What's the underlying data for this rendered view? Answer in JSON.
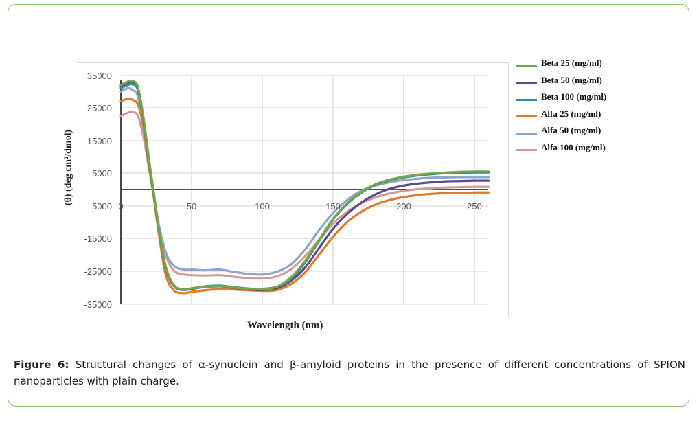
{
  "figure": {
    "caption_label": "Figure 6:",
    "caption_text": " Structural changes of α-synuclein and β-amyloid proteins in the presence of different concentrations of SPION nanoparticles with plain charge."
  },
  "chart_data": {
    "type": "line",
    "title": "",
    "xlabel": "Wavelength (nm)",
    "ylabel": "(θ) (deg cm²/dmol)",
    "xlim": [
      0,
      260
    ],
    "ylim": [
      -35000,
      35000
    ],
    "x_ticks": [
      0,
      50,
      100,
      150,
      200,
      250
    ],
    "x_tick_labels": [
      "0",
      "50",
      "100",
      "150",
      "200",
      "250"
    ],
    "y_ticks": [
      35000,
      25000,
      15000,
      5000,
      -5000,
      -15000,
      -25000,
      -35000
    ],
    "y_tick_labels": [
      "35000",
      "25000",
      "15000",
      "5000",
      "-5000",
      "-15000",
      "-25000",
      "-35000"
    ],
    "grid": true,
    "legend_position": "right",
    "x": [
      0,
      5,
      8,
      12,
      16,
      20,
      23,
      27,
      32,
      38,
      45,
      50,
      60,
      70,
      80,
      90,
      100,
      110,
      120,
      130,
      140,
      150,
      160,
      170,
      180,
      190,
      200,
      210,
      220,
      230,
      240,
      250,
      260
    ],
    "series": [
      {
        "name": "Beta 25 (mg/ml)",
        "color": "#77a645",
        "values": [
          32000,
          33000,
          33200,
          31500,
          22000,
          9000,
          0,
          -12000,
          -24000,
          -29500,
          -30500,
          -30200,
          -29700,
          -29500,
          -30000,
          -30400,
          -30500,
          -29800,
          -27000,
          -22000,
          -15500,
          -9000,
          -4200,
          -800,
          1600,
          3000,
          3900,
          4500,
          4900,
          5200,
          5400,
          5500,
          5500
        ]
      },
      {
        "name": "Beta 50 (mg/ml)",
        "color": "#5e4a8b",
        "values": [
          31500,
          32500,
          32600,
          31000,
          21500,
          8500,
          -500,
          -12500,
          -24500,
          -29800,
          -30700,
          -30400,
          -29800,
          -29600,
          -30100,
          -30600,
          -30700,
          -30200,
          -28000,
          -24000,
          -18000,
          -12000,
          -7500,
          -4000,
          -1500,
          200,
          1200,
          1800,
          2200,
          2500,
          2600,
          2700,
          2700
        ]
      },
      {
        "name": "Beta 100 (mg/ml)",
        "color": "#2b8fa3",
        "values": [
          31000,
          32000,
          32200,
          30500,
          21000,
          8000,
          -500,
          -12500,
          -24500,
          -29800,
          -30600,
          -30300,
          -29600,
          -29400,
          -29900,
          -30300,
          -30400,
          -29800,
          -27500,
          -22500,
          -15800,
          -9200,
          -4400,
          -1000,
          1400,
          2800,
          3700,
          4300,
          4700,
          5000,
          5100,
          5200,
          5200
        ]
      },
      {
        "name": "Alfa 25 (mg/ml)",
        "color": "#e07b2a",
        "values": [
          27000,
          27800,
          27500,
          26000,
          19000,
          7000,
          -1500,
          -14000,
          -26500,
          -31000,
          -31700,
          -31300,
          -30800,
          -30500,
          -30600,
          -30800,
          -31000,
          -30800,
          -29000,
          -25500,
          -20000,
          -14500,
          -10000,
          -6800,
          -4600,
          -3200,
          -2300,
          -1700,
          -1300,
          -1100,
          -1000,
          -900,
          -900
        ]
      },
      {
        "name": "Alfa 50 (mg/ml)",
        "color": "#8ea6cc",
        "values": [
          30000,
          31000,
          30500,
          28500,
          19000,
          7000,
          -1000,
          -11000,
          -19500,
          -23500,
          -24500,
          -24500,
          -24700,
          -24500,
          -25200,
          -25800,
          -26000,
          -25200,
          -23000,
          -18500,
          -12500,
          -7200,
          -3200,
          -400,
          1200,
          2200,
          2900,
          3300,
          3600,
          3700,
          3800,
          3800,
          3800
        ]
      },
      {
        "name": "Alfa 100 (mg/ml)",
        "color": "#d49a98",
        "values": [
          22500,
          23500,
          23800,
          22500,
          16000,
          6000,
          -1500,
          -11500,
          -20500,
          -25000,
          -26000,
          -26200,
          -26300,
          -26200,
          -26700,
          -27100,
          -27200,
          -26600,
          -24500,
          -20500,
          -15500,
          -10500,
          -6800,
          -4200,
          -2400,
          -1200,
          -400,
          100,
          400,
          600,
          700,
          800,
          800
        ]
      }
    ]
  }
}
